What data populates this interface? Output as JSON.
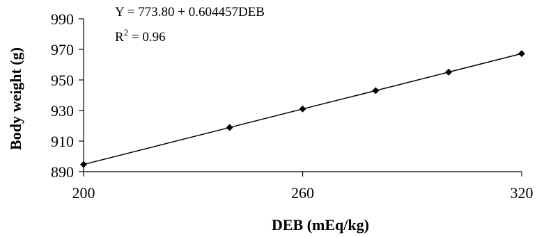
{
  "chart_data": {
    "type": "line",
    "xlabel": "DEB (mEq/kg)",
    "ylabel": "Body weight (g)",
    "xlim": [
      200,
      320
    ],
    "ylim": [
      890,
      990
    ],
    "x_ticks": [
      "200",
      "260",
      "320"
    ],
    "y_ticks": [
      "890",
      "910",
      "930",
      "950",
      "970",
      "990"
    ],
    "grid": false,
    "marker": "diamond",
    "series": [
      {
        "x": [
          200,
          240,
          260,
          280,
          300,
          320
        ],
        "y": [
          894.7,
          918.9,
          931.0,
          943.0,
          955.1,
          967.2
        ]
      }
    ],
    "annotations": {
      "equation": "Y = 773.80 + 0.604457DEB",
      "r2_prefix": "R",
      "r2_sup": "2",
      "r2_value": " = 0.96"
    },
    "colors": {
      "line": "#000000",
      "marker": "#000000",
      "axis": "#000000"
    }
  }
}
